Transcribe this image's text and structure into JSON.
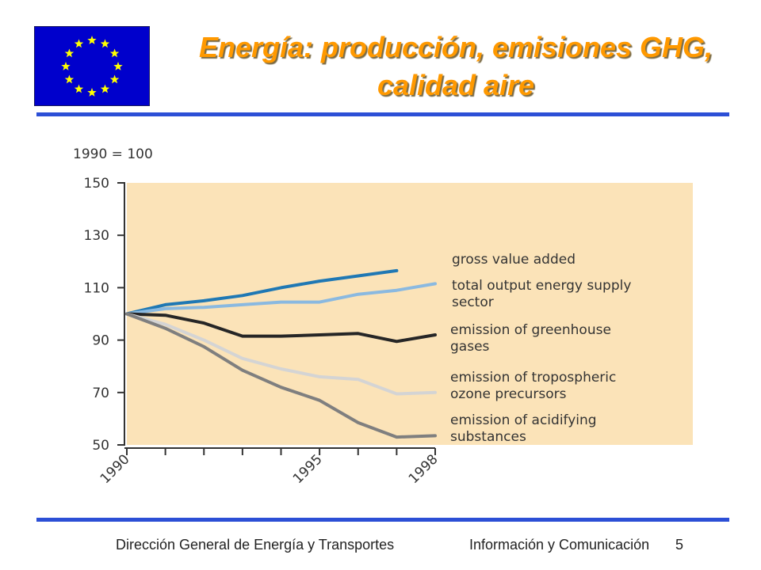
{
  "slide": {
    "title_line1": "Energía: producción, emisiones GHG,",
    "title_line2": "calidad aire",
    "footer_left": "Dirección General de Energía y Transportes",
    "footer_right": "Información y Comunicación",
    "page_number": "5"
  },
  "colors": {
    "title": "#ff9900",
    "rule": "#2c4fd6",
    "plot_background": "#fbe3b8",
    "flag_blue": "#0000cc",
    "flag_star": "#ffff00"
  },
  "chart_data": {
    "type": "line",
    "ylabel": "1990 = 100",
    "ylim": [
      50,
      150
    ],
    "yticks": [
      "150",
      "130",
      "110",
      "90",
      "70",
      "50"
    ],
    "xlim": [
      1990,
      1998
    ],
    "xtick_labels": [
      "1990",
      "1995",
      "1998"
    ],
    "grid": false,
    "legend_placement": "right",
    "series": [
      {
        "name": "gross value added",
        "color": "#1f78b4",
        "x": [
          1990,
          1991,
          1992,
          1993,
          1994,
          1995,
          1996,
          1997
        ],
        "y": [
          100,
          103.5,
          105,
          107,
          110,
          112.5,
          114.5,
          116.5
        ]
      },
      {
        "name": "total output energy supply sector",
        "color": "#8ab9e0",
        "x": [
          1990,
          1991,
          1992,
          1993,
          1994,
          1995,
          1996,
          1997,
          1998
        ],
        "y": [
          100,
          102,
          102.5,
          103.5,
          104.5,
          104.5,
          107.5,
          109,
          111.5
        ]
      },
      {
        "name": "emission of greenhouse gases",
        "color": "#262626",
        "x": [
          1990,
          1991,
          1992,
          1993,
          1994,
          1995,
          1996,
          1997,
          1998
        ],
        "y": [
          100,
          99.5,
          96.5,
          91.5,
          91.5,
          92,
          92.5,
          89.5,
          92
        ]
      },
      {
        "name": "emission of tropospheric ozone precursors",
        "color": "#d4d4d4",
        "x": [
          1990,
          1991,
          1992,
          1993,
          1994,
          1995,
          1996,
          1997,
          1998
        ],
        "y": [
          100,
          96,
          90,
          83,
          79,
          76,
          75,
          69.5,
          70
        ]
      },
      {
        "name": "emission of acidifying substances",
        "color": "#7f7f7f",
        "x": [
          1990,
          1991,
          1992,
          1993,
          1994,
          1995,
          1996,
          1997,
          1998
        ],
        "y": [
          100,
          94.5,
          87.5,
          78.5,
          72,
          67,
          58.5,
          53,
          53.5
        ]
      }
    ],
    "legend": [
      {
        "lines": [
          "gross value added"
        ]
      },
      {
        "lines": [
          "total output energy supply",
          "sector"
        ]
      },
      {
        "lines": [
          "emission of greenhouse",
          "gases"
        ]
      },
      {
        "lines": [
          "emission of tropospheric",
          "ozone precursors"
        ]
      },
      {
        "lines": [
          "emission of acidifying",
          "substances"
        ]
      }
    ]
  }
}
